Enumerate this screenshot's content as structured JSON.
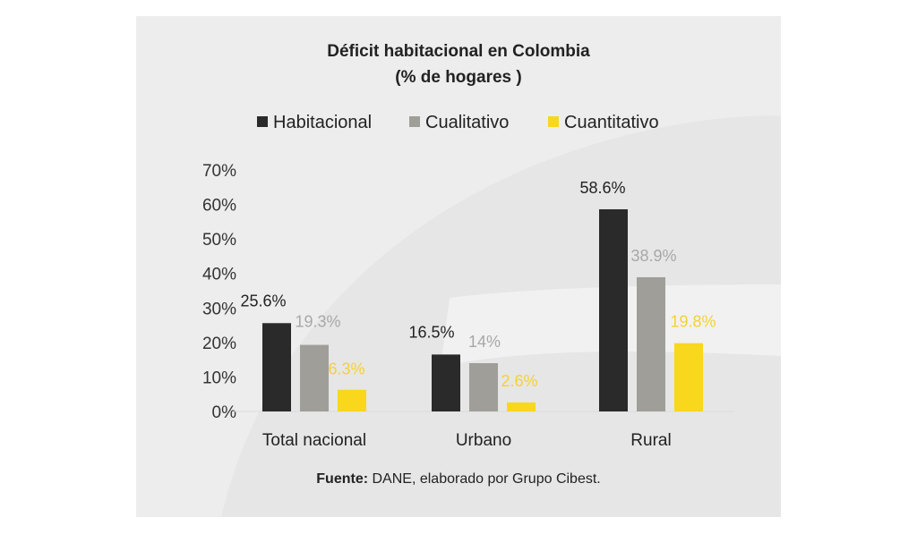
{
  "chart_data": {
    "type": "bar",
    "title": "Déficit habitacional en Colombia",
    "subtitle": "(% de hogares )",
    "categories": [
      "Total nacional",
      "Urbano",
      "Rural"
    ],
    "series": [
      {
        "name": "Habitacional",
        "values": [
          25.6,
          16.5,
          58.6
        ],
        "labels": [
          "25.6%",
          "16.5%",
          "58.6%"
        ],
        "color": "#2b2a2b",
        "label_color": "#222222"
      },
      {
        "name": "Cualitativo",
        "values": [
          19.3,
          14.0,
          38.9
        ],
        "labels": [
          "19.3%",
          "14%",
          "38.9%"
        ],
        "color": "#a09e99",
        "label_color": "#a8a8a8"
      },
      {
        "name": "Cuantitativo",
        "values": [
          6.3,
          2.6,
          19.8
        ],
        "labels": [
          "6.3%",
          "2.6%",
          "19.8%"
        ],
        "color": "#f9d71c",
        "label_color": "#f5d230"
      }
    ],
    "y_ticks": [
      "0%",
      "10%",
      "20%",
      "30%",
      "40%",
      "50%",
      "60%",
      "70%"
    ],
    "ylim": [
      0,
      70
    ],
    "grid": false,
    "legend_position": "top"
  },
  "source": {
    "label": "Fuente:",
    "text": " DANE, elaborado por Grupo Cibest."
  }
}
